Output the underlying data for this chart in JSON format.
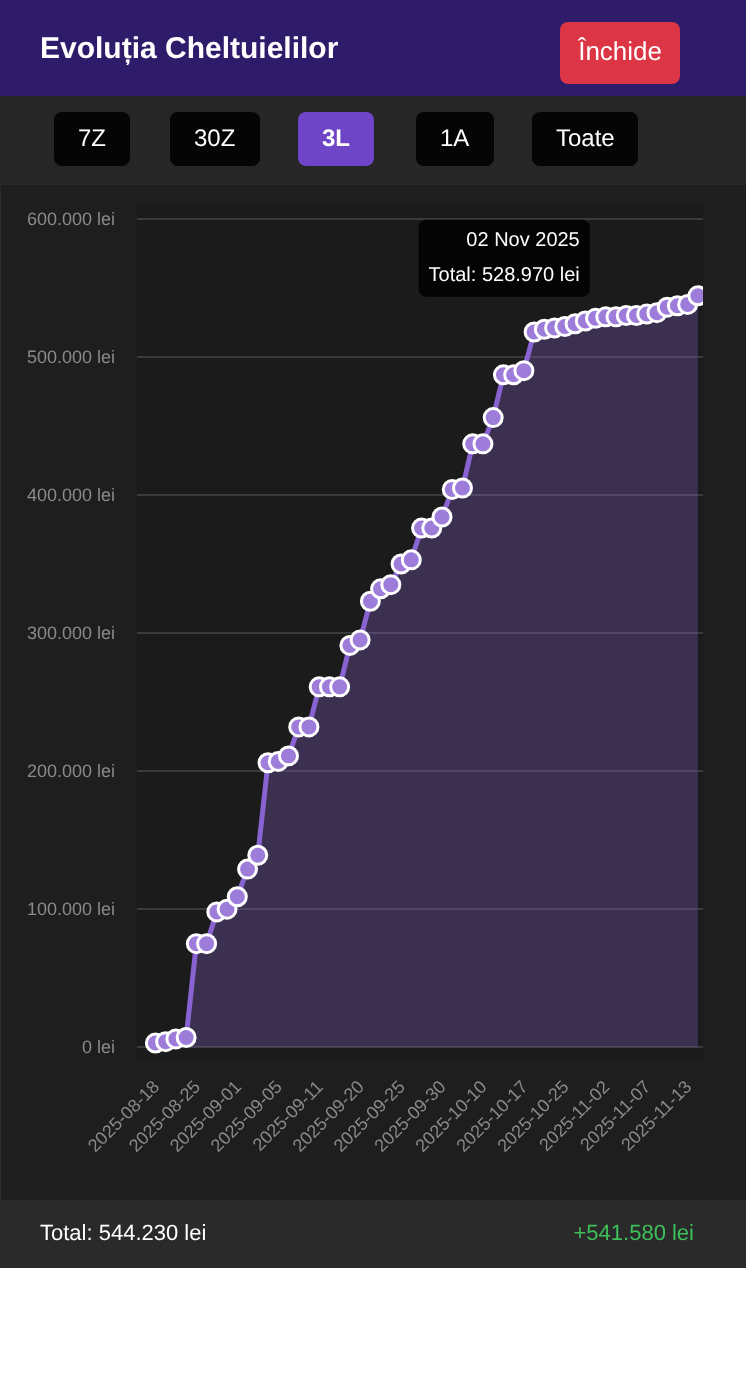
{
  "chart_data": {
    "type": "area",
    "title": "Evoluția Cheltuielilor",
    "annotations": [
      "Închide",
      "7Z",
      "30Z",
      "3L",
      "1A",
      "Toate",
      "Total: 544.230 lei",
      "+541.580 lei",
      {
        "text": "02 Nov 2025\nTotal: 528.970 lei",
        "x": "2025-11-02",
        "y": 528970
      }
    ],
    "categories": [
      "2025-08-18",
      null,
      null,
      null,
      "2025-08-25",
      null,
      null,
      null,
      "2025-09-01",
      null,
      null,
      null,
      "2025-09-05",
      null,
      null,
      null,
      "2025-09-11",
      null,
      null,
      null,
      "2025-09-20",
      null,
      null,
      null,
      "2025-09-25",
      null,
      null,
      null,
      "2025-09-30",
      null,
      null,
      null,
      "2025-10-10",
      null,
      null,
      null,
      "2025-10-17",
      null,
      null,
      null,
      "2025-10-25",
      null,
      null,
      null,
      "2025-11-02",
      null,
      null,
      null,
      "2025-11-07",
      null,
      null,
      null,
      "2025-11-13",
      null
    ],
    "series": [
      {
        "color": "#8a63d2",
        "values": [
          3000,
          4000,
          6000,
          7000,
          75000,
          75000,
          98000,
          100000,
          109000,
          129000,
          139000,
          206000,
          207000,
          211000,
          232000,
          232000,
          261000,
          261000,
          261000,
          291000,
          295000,
          323000,
          332000,
          335000,
          350000,
          353000,
          376000,
          376000,
          384000,
          404000,
          405000,
          437000,
          437000,
          456000,
          487000,
          487000,
          490000,
          518000,
          520000,
          521000,
          522000,
          524000,
          526000,
          528000,
          528970,
          529000,
          530000,
          530000,
          531000,
          532000,
          536000,
          537000,
          538000,
          544230
        ]
      }
    ],
    "ylim": [
      -10000,
      610000
    ],
    "yticks": [
      {
        "value": 0,
        "label": "0 lei"
      },
      {
        "value": 100000,
        "label": "100.000 lei"
      },
      {
        "value": 200000,
        "label": "200.000 lei"
      },
      {
        "value": 300000,
        "label": "300.000 lei"
      },
      {
        "value": 400000,
        "label": "400.000 lei"
      },
      {
        "value": 500000,
        "label": "500.000 lei"
      },
      {
        "value": 600000,
        "label": "600.000 lei"
      }
    ],
    "grid": "y",
    "marker": "circle",
    "line_style": "solid"
  }
}
